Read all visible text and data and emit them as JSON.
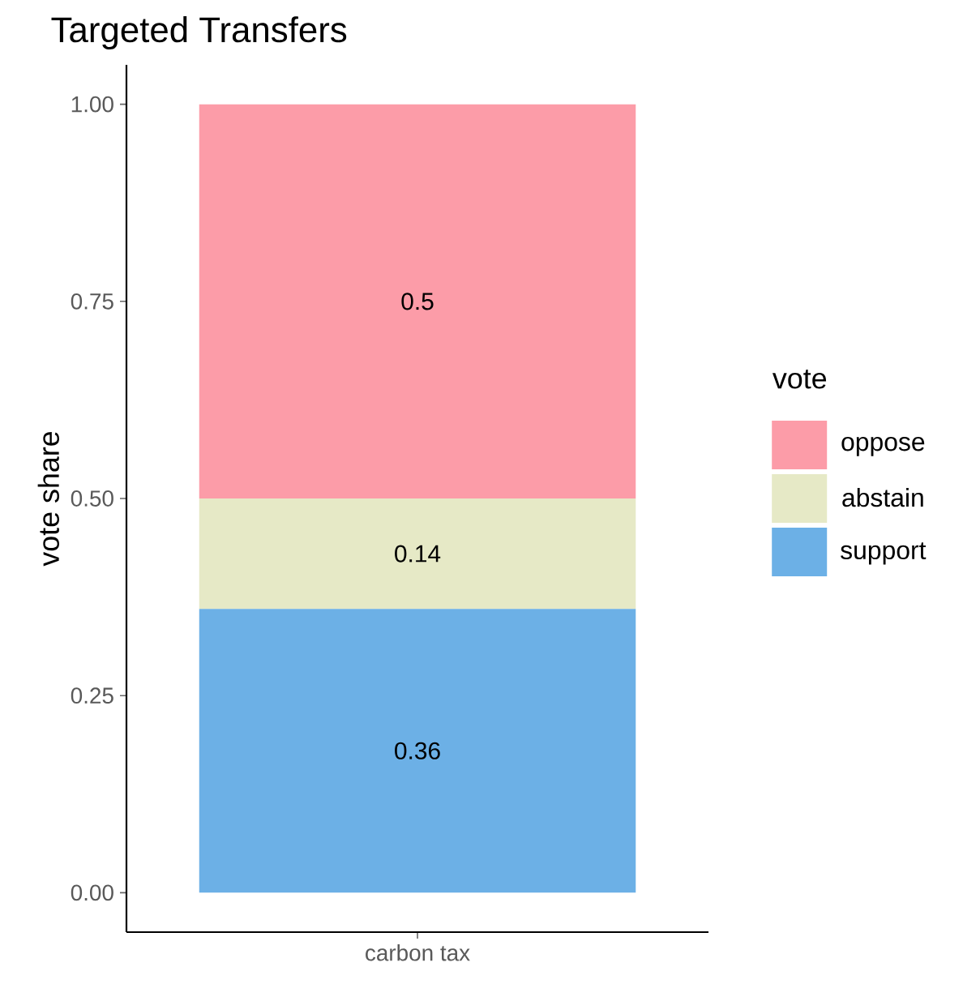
{
  "chart_data": {
    "type": "bar",
    "title": "Targeted Transfers",
    "xlabel": null,
    "ylabel": "vote share",
    "legend_title": "vote",
    "stacked": true,
    "categories": [
      "carbon tax"
    ],
    "series": [
      {
        "name": "support",
        "color": "#6cb0e6",
        "values": [
          0.36
        ]
      },
      {
        "name": "abstain",
        "color": "#e6e9c6",
        "values": [
          0.14
        ]
      },
      {
        "name": "oppose",
        "color": "#fc9ca8",
        "values": [
          0.5
        ]
      }
    ],
    "ylim": [
      -0.05,
      1.05
    ],
    "yticks": [
      {
        "value": 0,
        "label": "0.00"
      },
      {
        "value": 0.25,
        "label": "0.25"
      },
      {
        "value": 0.5,
        "label": "0.50"
      },
      {
        "value": 0.75,
        "label": "0.75"
      },
      {
        "value": 1,
        "label": "1.00"
      }
    ],
    "data_labels": true,
    "legend": "right",
    "grid": false
  }
}
